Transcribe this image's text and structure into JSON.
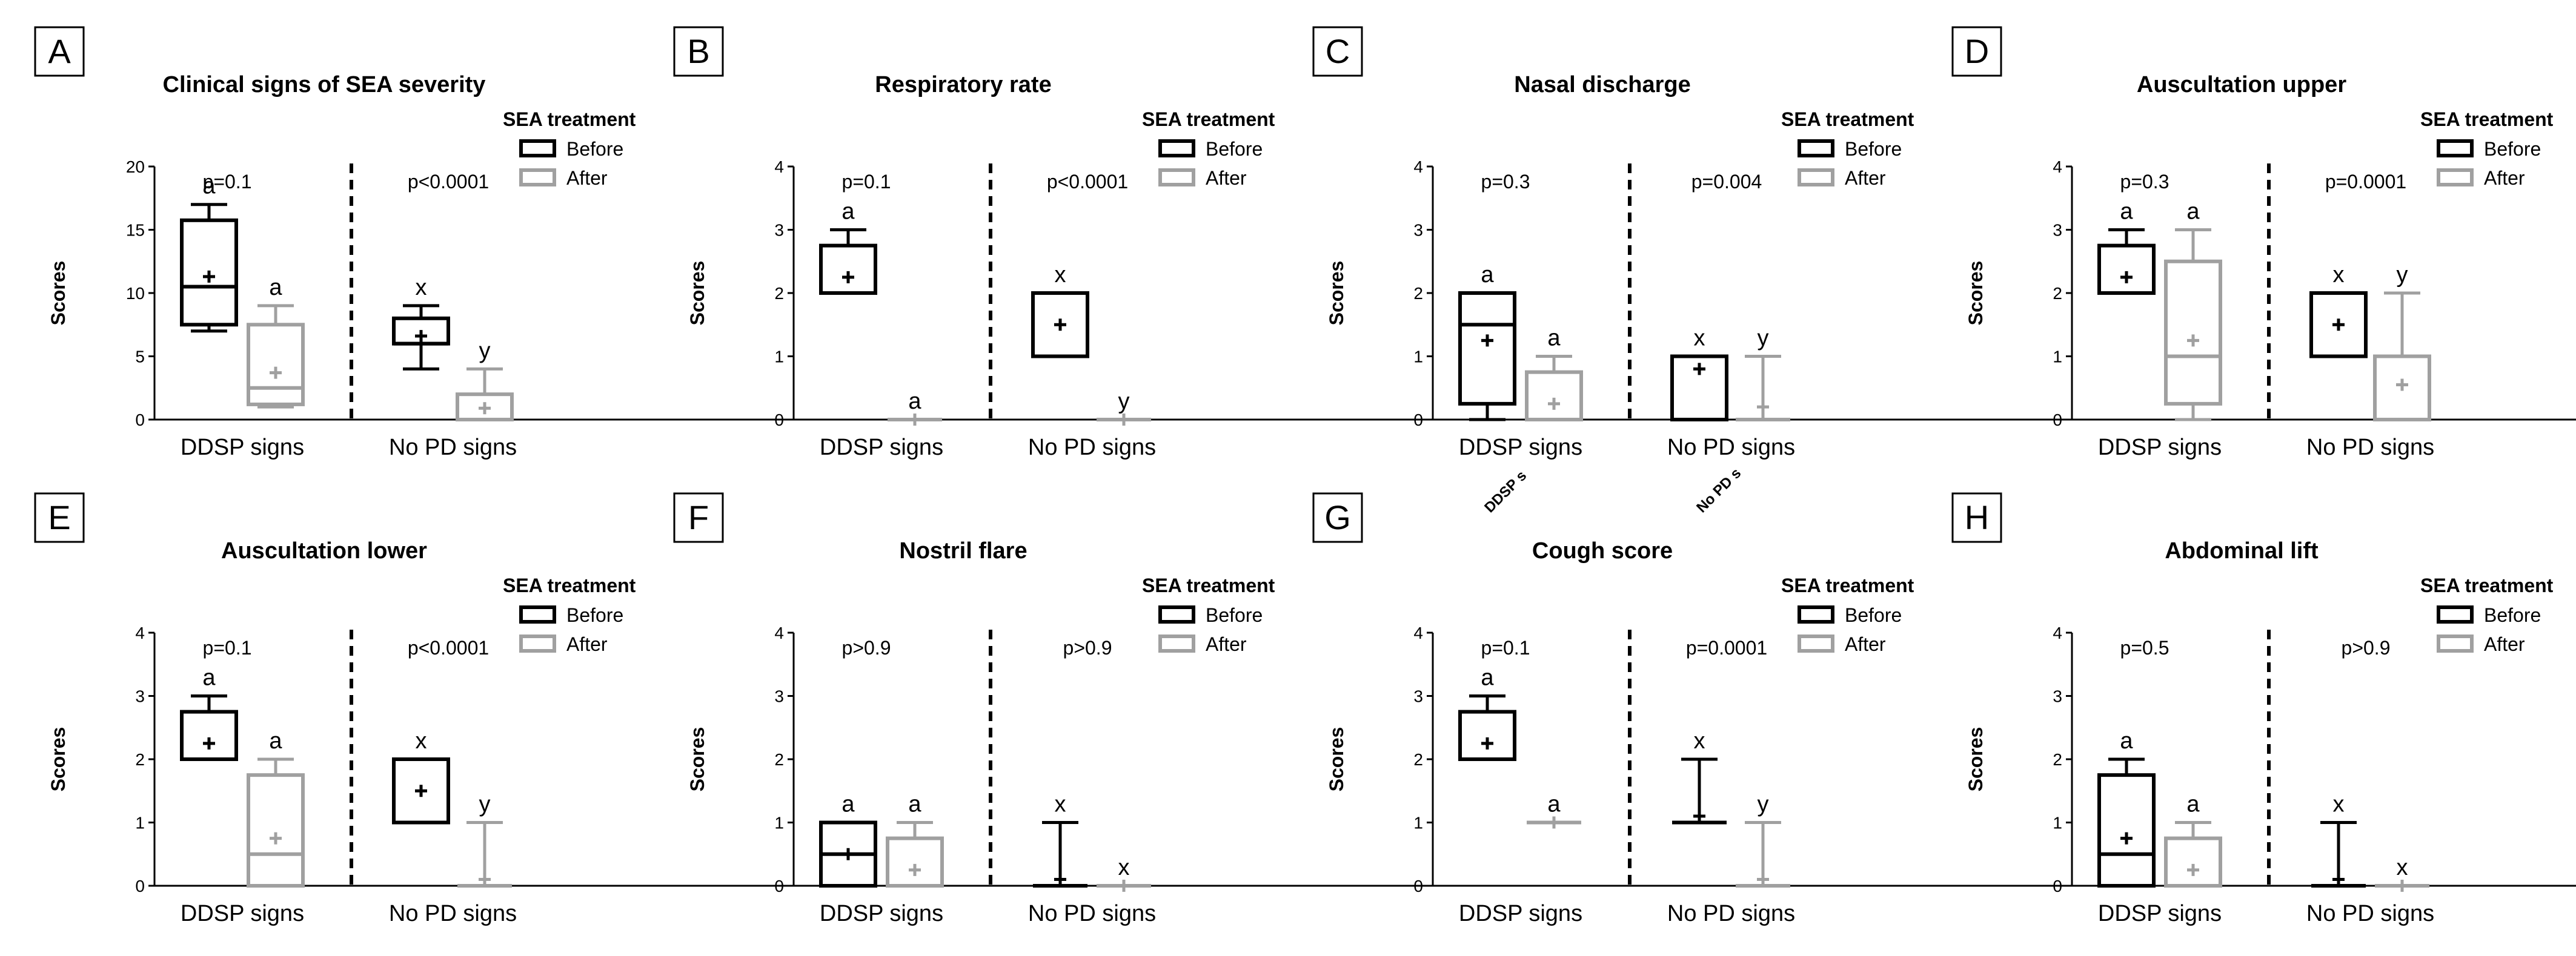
{
  "colors": {
    "before": "#000000",
    "after": "#a0a0a0"
  },
  "legend": {
    "title": "SEA treatment",
    "before_label": "Before",
    "after_label": "After"
  },
  "chart_data": [
    {
      "panel": "A",
      "title": "Clinical signs of SEA severity",
      "type": "box",
      "ylabel": "Scores",
      "ylim": [
        0,
        20
      ],
      "yticks": [
        0,
        5,
        10,
        15,
        20
      ],
      "categories": [
        "DDSP signs",
        "No PD signs"
      ],
      "pvalues": [
        "p=0.1",
        "p<0.0001"
      ],
      "boxes": [
        {
          "group": "DDSP signs",
          "series": "Before",
          "min": 7,
          "q1": 7.5,
          "median": 10.5,
          "q3": 15.75,
          "max": 17,
          "mean": 11.3,
          "sig": "a"
        },
        {
          "group": "DDSP signs",
          "series": "After",
          "min": 1,
          "q1": 1.2,
          "median": 2.5,
          "q3": 7.5,
          "max": 9,
          "mean": 3.7,
          "sig": "a"
        },
        {
          "group": "No PD signs",
          "series": "Before",
          "min": 4,
          "q1": 6,
          "median": 6,
          "q3": 8,
          "max": 9,
          "mean": 6.6,
          "sig": "x"
        },
        {
          "group": "No PD signs",
          "series": "After",
          "min": 0,
          "q1": 0,
          "median": 0,
          "q3": 2,
          "max": 4,
          "mean": 0.9,
          "sig": "y"
        }
      ]
    },
    {
      "panel": "B",
      "title": "Respiratory rate",
      "type": "box",
      "ylabel": "Scores",
      "ylim": [
        0,
        4
      ],
      "yticks": [
        0,
        1,
        2,
        3,
        4
      ],
      "categories": [
        "DDSP signs",
        "No PD signs"
      ],
      "pvalues": [
        "p=0.1",
        "p<0.0001"
      ],
      "boxes": [
        {
          "group": "DDSP signs",
          "series": "Before",
          "min": 2,
          "q1": 2,
          "median": 2,
          "q3": 2.75,
          "max": 3,
          "mean": 2.25,
          "sig": "a"
        },
        {
          "group": "DDSP signs",
          "series": "After",
          "min": 0,
          "q1": 0,
          "median": 0,
          "q3": 0,
          "max": 0,
          "mean": 0,
          "sig": "a"
        },
        {
          "group": "No PD signs",
          "series": "Before",
          "min": 1,
          "q1": 1,
          "median": 2,
          "q3": 2,
          "max": 2,
          "mean": 1.5,
          "sig": "x"
        },
        {
          "group": "No PD signs",
          "series": "After",
          "min": 0,
          "q1": 0,
          "median": 0,
          "q3": 0,
          "max": 0,
          "mean": 0,
          "sig": "y"
        }
      ]
    },
    {
      "panel": "C",
      "title": "Nasal discharge",
      "type": "box",
      "ylabel": "Scores",
      "ylim": [
        0,
        4
      ],
      "yticks": [
        0,
        1,
        2,
        3,
        4
      ],
      "categories": [
        "DDSP signs",
        "No PD signs"
      ],
      "rotated_labels": [
        "DDSP s",
        "No PD s"
      ],
      "pvalues": [
        "p=0.3",
        "p=0.004"
      ],
      "boxes": [
        {
          "group": "DDSP signs",
          "series": "Before",
          "min": 0,
          "q1": 0.25,
          "median": 1.5,
          "q3": 2,
          "max": 2,
          "mean": 1.25,
          "sig": "a"
        },
        {
          "group": "DDSP signs",
          "series": "After",
          "min": 0,
          "q1": 0,
          "median": 0,
          "q3": 0.75,
          "max": 1,
          "mean": 0.25,
          "sig": "a"
        },
        {
          "group": "No PD signs",
          "series": "Before",
          "min": 0,
          "q1": 0,
          "median": 1,
          "q3": 1,
          "max": 1,
          "mean": 0.8,
          "sig": "x"
        },
        {
          "group": "No PD signs",
          "series": "After",
          "min": 0,
          "q1": 0,
          "median": 0,
          "q3": 0,
          "max": 1,
          "mean": 0.2,
          "sig": "y"
        }
      ]
    },
    {
      "panel": "D",
      "title": "Auscultation upper",
      "type": "box",
      "ylabel": "Scores",
      "ylim": [
        0,
        4
      ],
      "yticks": [
        0,
        1,
        2,
        3,
        4
      ],
      "categories": [
        "DDSP signs",
        "No PD signs"
      ],
      "pvalues": [
        "p=0.3",
        "p=0.0001"
      ],
      "boxes": [
        {
          "group": "DDSP signs",
          "series": "Before",
          "min": 2,
          "q1": 2,
          "median": 2,
          "q3": 2.75,
          "max": 3,
          "mean": 2.25,
          "sig": "a"
        },
        {
          "group": "DDSP signs",
          "series": "After",
          "min": 0,
          "q1": 0.25,
          "median": 1,
          "q3": 2.5,
          "max": 3,
          "mean": 1.25,
          "sig": "a"
        },
        {
          "group": "No PD signs",
          "series": "Before",
          "min": 1,
          "q1": 1,
          "median": 2,
          "q3": 2,
          "max": 2,
          "mean": 1.5,
          "sig": "x"
        },
        {
          "group": "No PD signs",
          "series": "After",
          "min": 0,
          "q1": 0,
          "median": 0,
          "q3": 1,
          "max": 2,
          "mean": 0.55,
          "sig": "y"
        }
      ]
    },
    {
      "panel": "E",
      "title": "Auscultation lower",
      "type": "box",
      "ylabel": "Scores",
      "ylim": [
        0,
        4
      ],
      "yticks": [
        0,
        1,
        2,
        3,
        4
      ],
      "categories": [
        "DDSP signs",
        "No PD signs"
      ],
      "pvalues": [
        "p=0.1",
        "p<0.0001"
      ],
      "boxes": [
        {
          "group": "DDSP signs",
          "series": "Before",
          "min": 2,
          "q1": 2,
          "median": 2,
          "q3": 2.75,
          "max": 3,
          "mean": 2.25,
          "sig": "a"
        },
        {
          "group": "DDSP signs",
          "series": "After",
          "min": 0,
          "q1": 0,
          "median": 0.5,
          "q3": 1.75,
          "max": 2,
          "mean": 0.75,
          "sig": "a"
        },
        {
          "group": "No PD signs",
          "series": "Before",
          "min": 1,
          "q1": 1,
          "median": 2,
          "q3": 2,
          "max": 2,
          "mean": 1.5,
          "sig": "x"
        },
        {
          "group": "No PD signs",
          "series": "After",
          "min": 0,
          "q1": 0,
          "median": 0,
          "q3": 0,
          "max": 1,
          "mean": 0.1,
          "sig": "y"
        }
      ]
    },
    {
      "panel": "F",
      "title": "Nostril flare",
      "type": "box",
      "ylabel": "Scores",
      "ylim": [
        0,
        4
      ],
      "yticks": [
        0,
        1,
        2,
        3,
        4
      ],
      "categories": [
        "DDSP signs",
        "No PD signs"
      ],
      "pvalues": [
        "p>0.9",
        "p>0.9"
      ],
      "boxes": [
        {
          "group": "DDSP signs",
          "series": "Before",
          "min": 0,
          "q1": 0,
          "median": 0.5,
          "q3": 1,
          "max": 1,
          "mean": 0.5,
          "sig": "a"
        },
        {
          "group": "DDSP signs",
          "series": "After",
          "min": 0,
          "q1": 0,
          "median": 0,
          "q3": 0.75,
          "max": 1,
          "mean": 0.25,
          "sig": "a"
        },
        {
          "group": "No PD signs",
          "series": "Before",
          "min": 0,
          "q1": 0,
          "median": 0,
          "q3": 0,
          "max": 1,
          "mean": 0.1,
          "sig": "x"
        },
        {
          "group": "No PD signs",
          "series": "After",
          "min": 0,
          "q1": 0,
          "median": 0,
          "q3": 0,
          "max": 0,
          "mean": 0,
          "sig": "x"
        }
      ]
    },
    {
      "panel": "G",
      "title": "Cough score",
      "type": "box",
      "ylabel": "Scores",
      "ylim": [
        0,
        4
      ],
      "yticks": [
        0,
        1,
        2,
        3,
        4
      ],
      "categories": [
        "DDSP signs",
        "No PD signs"
      ],
      "pvalues": [
        "p=0.1",
        "p=0.0001"
      ],
      "boxes": [
        {
          "group": "DDSP signs",
          "series": "Before",
          "min": 2,
          "q1": 2,
          "median": 2,
          "q3": 2.75,
          "max": 3,
          "mean": 2.25,
          "sig": "a"
        },
        {
          "group": "DDSP signs",
          "series": "After",
          "min": 1,
          "q1": 1,
          "median": 1,
          "q3": 1,
          "max": 1,
          "mean": 1,
          "sig": "a"
        },
        {
          "group": "No PD signs",
          "series": "Before",
          "min": 1,
          "q1": 1,
          "median": 1,
          "q3": 1,
          "max": 2,
          "mean": 1.1,
          "sig": "x"
        },
        {
          "group": "No PD signs",
          "series": "After",
          "min": 0,
          "q1": 0,
          "median": 0,
          "q3": 0,
          "max": 1,
          "mean": 0.1,
          "sig": "y"
        }
      ]
    },
    {
      "panel": "H",
      "title": "Abdominal lift",
      "type": "box",
      "ylabel": "Scores",
      "ylim": [
        0,
        4
      ],
      "yticks": [
        0,
        1,
        2,
        3,
        4
      ],
      "categories": [
        "DDSP signs",
        "No PD signs"
      ],
      "pvalues": [
        "p=0.5",
        "p>0.9"
      ],
      "boxes": [
        {
          "group": "DDSP signs",
          "series": "Before",
          "min": 0,
          "q1": 0,
          "median": 0.5,
          "q3": 1.75,
          "max": 2,
          "mean": 0.75,
          "sig": "a"
        },
        {
          "group": "DDSP signs",
          "series": "After",
          "min": 0,
          "q1": 0,
          "median": 0,
          "q3": 0.75,
          "max": 1,
          "mean": 0.25,
          "sig": "a"
        },
        {
          "group": "No PD signs",
          "series": "Before",
          "min": 0,
          "q1": 0,
          "median": 0,
          "q3": 0,
          "max": 1,
          "mean": 0.1,
          "sig": "x"
        },
        {
          "group": "No PD signs",
          "series": "After",
          "min": 0,
          "q1": 0,
          "median": 0,
          "q3": 0,
          "max": 0,
          "mean": 0,
          "sig": "x"
        }
      ]
    }
  ]
}
